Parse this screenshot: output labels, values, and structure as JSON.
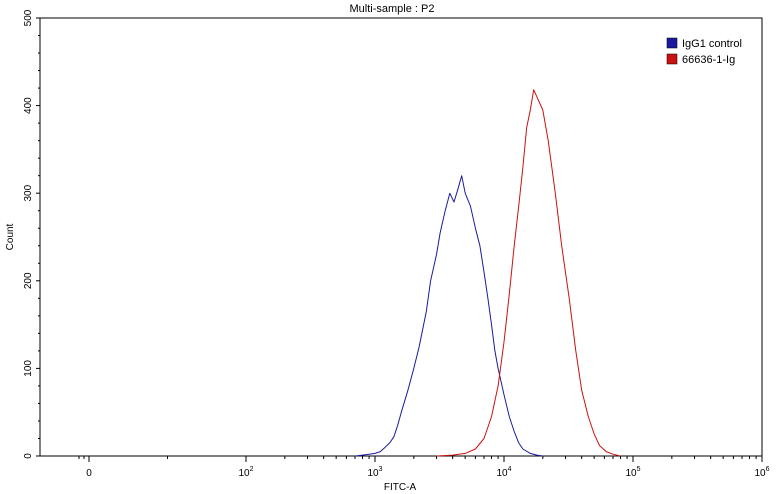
{
  "chart_data": {
    "type": "line",
    "title": "Multi-sample : P2",
    "xlabel": "FITC-A",
    "ylabel": "Count",
    "x_scale": "biexponential",
    "xlim": [
      -100,
      1000000
    ],
    "ylim": [
      0,
      500
    ],
    "yticks": [
      "0",
      "100",
      "200",
      "300",
      "400",
      "500"
    ],
    "xticks": [
      {
        "value": 0,
        "label": "0"
      },
      {
        "value": 100,
        "base": "10",
        "exp": "2"
      },
      {
        "value": 1000,
        "base": "10",
        "exp": "3"
      },
      {
        "value": 10000,
        "base": "10",
        "exp": "4"
      },
      {
        "value": 100000,
        "base": "10",
        "exp": "5"
      },
      {
        "value": 1000000,
        "base": "10",
        "exp": "6"
      }
    ],
    "grid": false,
    "legend_position": "top-right",
    "series": [
      {
        "name": "IgG1 control",
        "color": "#1a1a9e",
        "points": [
          [
            700,
            0
          ],
          [
            800,
            1
          ],
          [
            900,
            2
          ],
          [
            1000,
            3
          ],
          [
            1100,
            5
          ],
          [
            1200,
            10
          ],
          [
            1300,
            15
          ],
          [
            1400,
            22
          ],
          [
            1500,
            35
          ],
          [
            1600,
            50
          ],
          [
            1800,
            75
          ],
          [
            2000,
            100
          ],
          [
            2200,
            125
          ],
          [
            2500,
            165
          ],
          [
            2700,
            200
          ],
          [
            3000,
            230
          ],
          [
            3200,
            255
          ],
          [
            3500,
            280
          ],
          [
            3800,
            300
          ],
          [
            4100,
            290
          ],
          [
            4400,
            305
          ],
          [
            4700,
            320
          ],
          [
            5000,
            300
          ],
          [
            5500,
            285
          ],
          [
            6000,
            260
          ],
          [
            6500,
            240
          ],
          [
            7000,
            210
          ],
          [
            7500,
            180
          ],
          [
            8000,
            150
          ],
          [
            8500,
            120
          ],
          [
            9000,
            100
          ],
          [
            10000,
            70
          ],
          [
            11000,
            45
          ],
          [
            12000,
            28
          ],
          [
            13000,
            15
          ],
          [
            14000,
            8
          ],
          [
            16000,
            3
          ],
          [
            18000,
            1
          ],
          [
            20000,
            0
          ]
        ]
      },
      {
        "name": "66636-1-Ig",
        "color": "#cc1111",
        "points": [
          [
            3000,
            0
          ],
          [
            4000,
            1
          ],
          [
            5000,
            3
          ],
          [
            6000,
            8
          ],
          [
            7000,
            20
          ],
          [
            8000,
            45
          ],
          [
            9000,
            80
          ],
          [
            10000,
            130
          ],
          [
            11000,
            185
          ],
          [
            12000,
            240
          ],
          [
            13000,
            285
          ],
          [
            14000,
            330
          ],
          [
            15000,
            375
          ],
          [
            16000,
            395
          ],
          [
            17000,
            418
          ],
          [
            18000,
            410
          ],
          [
            20000,
            395
          ],
          [
            22000,
            360
          ],
          [
            25000,
            300
          ],
          [
            28000,
            240
          ],
          [
            32000,
            180
          ],
          [
            36000,
            120
          ],
          [
            40000,
            75
          ],
          [
            45000,
            45
          ],
          [
            50000,
            25
          ],
          [
            55000,
            12
          ],
          [
            62000,
            5
          ],
          [
            70000,
            2
          ],
          [
            80000,
            0
          ]
        ]
      }
    ]
  }
}
